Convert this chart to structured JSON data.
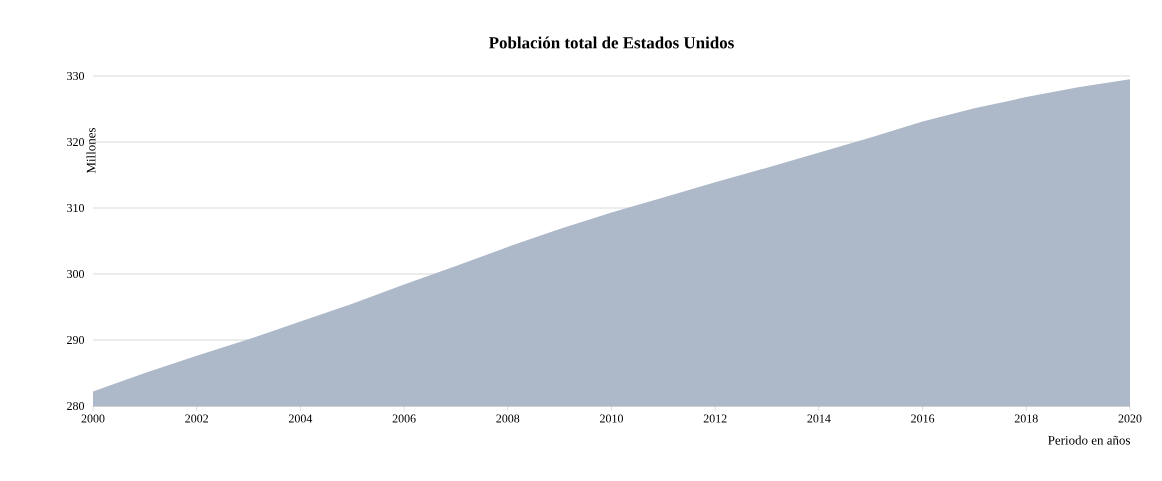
{
  "chart_data": {
    "type": "area",
    "title": "Población total de Estados Unidos",
    "xlabel": "Periodo en años",
    "ylabel": "Millones",
    "x": [
      2000,
      2001,
      2002,
      2003,
      2004,
      2005,
      2006,
      2007,
      2008,
      2009,
      2010,
      2011,
      2012,
      2013,
      2014,
      2015,
      2016,
      2017,
      2018,
      2019,
      2020
    ],
    "values": [
      282.2,
      285.0,
      287.6,
      290.1,
      292.8,
      295.5,
      298.4,
      301.2,
      304.1,
      306.8,
      309.3,
      311.6,
      313.9,
      316.1,
      318.4,
      320.7,
      323.1,
      325.1,
      326.8,
      328.3,
      329.5
    ],
    "color": "#adb8c9",
    "xlim": [
      2000,
      2020
    ],
    "ylim": [
      280,
      330
    ],
    "xticks": [
      2000,
      2002,
      2004,
      2006,
      2008,
      2010,
      2012,
      2014,
      2016,
      2018,
      2020
    ],
    "yticks": [
      280,
      290,
      300,
      310,
      320,
      330
    ],
    "grid": "y"
  }
}
